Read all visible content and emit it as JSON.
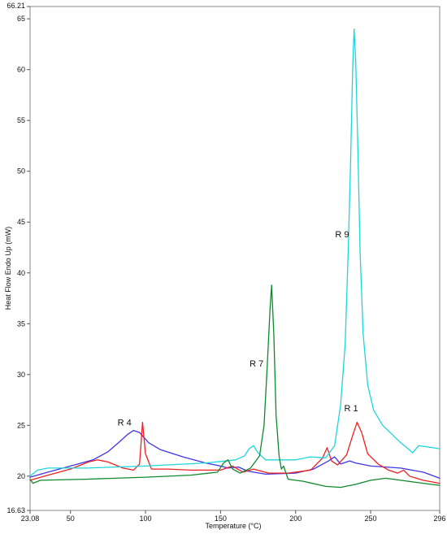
{
  "chart_data": {
    "type": "line",
    "title": "",
    "xlabel": "Temperature (°C)",
    "ylabel": "Heat Flow Endo Up (mW)",
    "xlim": [
      23.08,
      296
    ],
    "ylim": [
      16.63,
      66.21
    ],
    "x_ticks": [
      "23.08",
      "50",
      "100",
      "150",
      "200",
      "250",
      "296"
    ],
    "y_ticks": [
      "16.63",
      "20",
      "25",
      "30",
      "35",
      "40",
      "45",
      "50",
      "55",
      "60",
      "65",
      "66.21"
    ],
    "grid": false,
    "legend": "none",
    "series": [
      {
        "name": "R 4",
        "color": "#3f35e6",
        "points": [
          [
            23.08,
            19.9
          ],
          [
            35,
            20.4
          ],
          [
            50,
            21.0
          ],
          [
            65,
            21.6
          ],
          [
            75,
            22.4
          ],
          [
            82,
            23.3
          ],
          [
            88,
            24.1
          ],
          [
            92,
            24.5
          ],
          [
            96,
            24.3
          ],
          [
            102,
            23.3
          ],
          [
            110,
            22.6
          ],
          [
            125,
            21.9
          ],
          [
            140,
            21.3
          ],
          [
            150,
            21.0
          ],
          [
            155,
            20.8
          ],
          [
            162,
            20.9
          ],
          [
            168,
            20.5
          ],
          [
            180,
            20.2
          ],
          [
            200,
            20.3
          ],
          [
            212,
            20.7
          ],
          [
            222,
            21.5
          ],
          [
            226,
            21.9
          ],
          [
            230,
            21.2
          ],
          [
            236,
            21.5
          ],
          [
            240,
            21.3
          ],
          [
            250,
            21.0
          ],
          [
            270,
            20.8
          ],
          [
            285,
            20.4
          ],
          [
            296,
            19.8
          ]
        ]
      },
      {
        "name": "R 1",
        "color": "#ee1f1f",
        "points": [
          [
            23.08,
            19.6
          ],
          [
            35,
            20.1
          ],
          [
            50,
            20.7
          ],
          [
            62,
            21.4
          ],
          [
            68,
            21.6
          ],
          [
            75,
            21.4
          ],
          [
            85,
            20.8
          ],
          [
            92,
            20.6
          ],
          [
            96,
            21.2
          ],
          [
            98,
            25.3
          ],
          [
            100,
            22.2
          ],
          [
            104,
            20.7
          ],
          [
            115,
            20.7
          ],
          [
            130,
            20.6
          ],
          [
            150,
            20.6
          ],
          [
            158,
            21.0
          ],
          [
            165,
            20.4
          ],
          [
            172,
            20.7
          ],
          [
            182,
            20.3
          ],
          [
            195,
            20.3
          ],
          [
            210,
            20.6
          ],
          [
            218,
            21.8
          ],
          [
            221,
            22.8
          ],
          [
            224,
            21.5
          ],
          [
            228,
            21.1
          ],
          [
            234,
            22.1
          ],
          [
            238,
            24.0
          ],
          [
            241,
            25.3
          ],
          [
            244,
            24.3
          ],
          [
            248,
            22.2
          ],
          [
            255,
            21.2
          ],
          [
            262,
            20.6
          ],
          [
            268,
            20.3
          ],
          [
            272,
            20.6
          ],
          [
            276,
            20.0
          ],
          [
            285,
            19.6
          ],
          [
            296,
            19.3
          ]
        ]
      },
      {
        "name": "R 9",
        "color": "#1dd6dc",
        "points": [
          [
            23.08,
            20.0
          ],
          [
            28,
            20.6
          ],
          [
            35,
            20.8
          ],
          [
            60,
            20.8
          ],
          [
            100,
            21.0
          ],
          [
            140,
            21.3
          ],
          [
            160,
            21.6
          ],
          [
            166,
            22.0
          ],
          [
            169,
            22.7
          ],
          [
            172,
            23.0
          ],
          [
            175,
            22.3
          ],
          [
            180,
            21.6
          ],
          [
            200,
            21.6
          ],
          [
            210,
            21.9
          ],
          [
            220,
            21.8
          ],
          [
            226,
            23.0
          ],
          [
            230,
            27.0
          ],
          [
            233,
            33.0
          ],
          [
            235,
            42.0
          ],
          [
            236.5,
            50.0
          ],
          [
            238,
            60.0
          ],
          [
            239,
            64.0
          ],
          [
            240,
            61.0
          ],
          [
            241.5,
            52.0
          ],
          [
            243,
            42.0
          ],
          [
            245,
            34.0
          ],
          [
            248,
            29.0
          ],
          [
            252,
            26.5
          ],
          [
            258,
            25.0
          ],
          [
            265,
            24.0
          ],
          [
            270,
            23.3
          ],
          [
            274,
            22.8
          ],
          [
            278,
            22.3
          ],
          [
            282,
            23.0
          ],
          [
            287,
            22.9
          ],
          [
            296,
            22.7
          ]
        ]
      },
      {
        "name": "R 7",
        "color": "#0e8a2e",
        "points": [
          [
            23.08,
            19.7
          ],
          [
            25,
            19.3
          ],
          [
            30,
            19.6
          ],
          [
            60,
            19.7
          ],
          [
            100,
            19.9
          ],
          [
            130,
            20.1
          ],
          [
            148,
            20.4
          ],
          [
            152,
            21.3
          ],
          [
            155,
            21.6
          ],
          [
            158,
            20.7
          ],
          [
            163,
            20.3
          ],
          [
            170,
            20.8
          ],
          [
            176,
            22.0
          ],
          [
            179,
            25.0
          ],
          [
            181,
            30.5
          ],
          [
            183,
            36.5
          ],
          [
            184,
            38.8
          ],
          [
            185.5,
            34.0
          ],
          [
            187,
            26.0
          ],
          [
            189,
            22.0
          ],
          [
            190.5,
            20.7
          ],
          [
            192,
            21.0
          ],
          [
            195,
            19.7
          ],
          [
            205,
            19.5
          ],
          [
            220,
            19.0
          ],
          [
            230,
            18.9
          ],
          [
            240,
            19.2
          ],
          [
            250,
            19.6
          ],
          [
            260,
            19.8
          ],
          [
            275,
            19.5
          ],
          [
            290,
            19.2
          ],
          [
            296,
            19.1
          ]
        ]
      }
    ],
    "annotations": [
      {
        "text": "R 4",
        "x": 86,
        "y": 25.0
      },
      {
        "text": "R 1",
        "x": 237,
        "y": 26.4
      },
      {
        "text": "R 9",
        "x": 231,
        "y": 43.5
      },
      {
        "text": "R 7",
        "x": 174,
        "y": 30.8
      }
    ]
  }
}
